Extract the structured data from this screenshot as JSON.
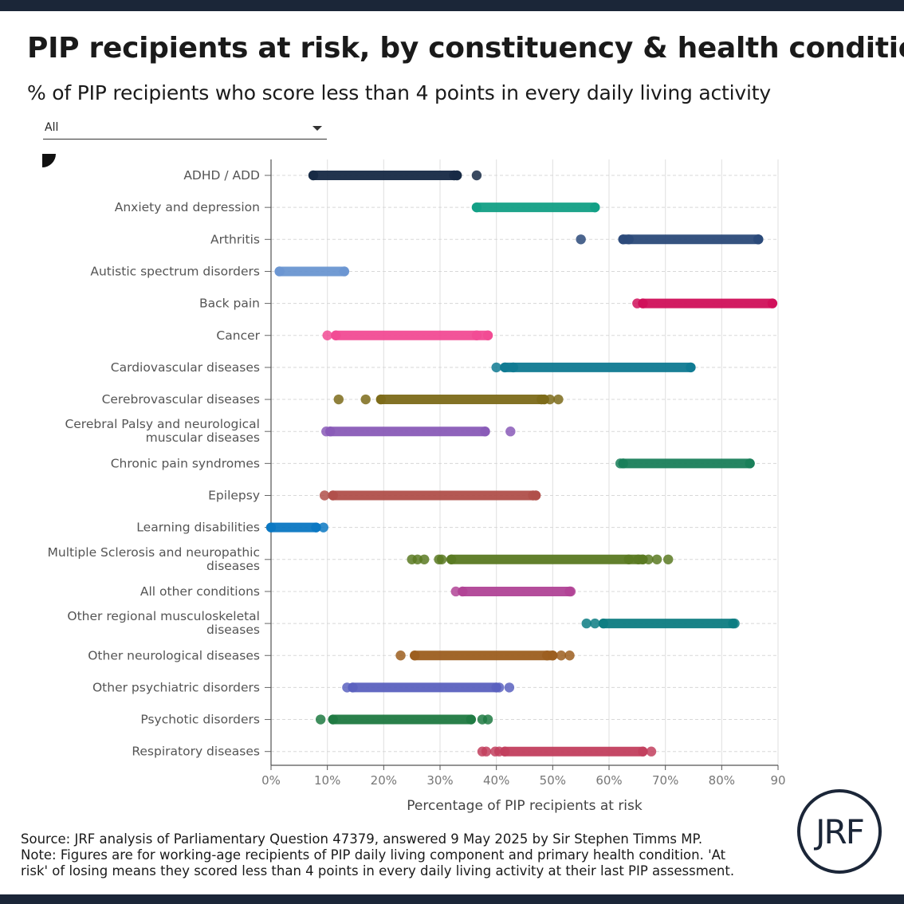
{
  "title": "PIP recipients at risk, by constituency & health condition",
  "subtitle": "% of PIP recipients who score less than 4 points in every daily living activity",
  "filter": {
    "selected": "All"
  },
  "footer": {
    "source": "Source: JRF analysis of Parliamentary Question 47379, answered 9 May 2025 by Sir Stephen Timms MP.",
    "note1": "Note: Figures are for working-age recipients of PIP daily living component and primary health condition. 'At",
    "note2": "risk' of losing means they scored less than 4 points in every daily living activity at their last PIP assessment."
  },
  "logo": {
    "text": "JRF",
    "color": "#1b2638"
  },
  "chart_data": {
    "type": "scatter",
    "xlabel": "Percentage of PIP recipients at risk",
    "xlim": [
      0,
      90
    ],
    "xticks": [
      0,
      10,
      20,
      30,
      40,
      50,
      60,
      70,
      80,
      90
    ],
    "xtick_labels": [
      "0%",
      "10%",
      "20%",
      "30%",
      "40%",
      "50%",
      "60%",
      "70%",
      "80%",
      "90"
    ],
    "grid": true,
    "series": [
      {
        "label": [
          "ADHD / ADD"
        ],
        "color": "#172a45",
        "band": [
          7.5,
          33
        ],
        "points": [
          32.5,
          36.5
        ]
      },
      {
        "label": [
          "Anxiety and depression"
        ],
        "color": "#12a085",
        "band": [
          36.5,
          57.5
        ],
        "points": []
      },
      {
        "label": [
          "Arthritis"
        ],
        "color": "#2c4a7a",
        "band": [
          62.5,
          86.5
        ],
        "points": [
          55,
          63.5,
          86.5
        ]
      },
      {
        "label": [
          "Autistic spectrum disorders"
        ],
        "color": "#6b96d1",
        "band": [
          1.5,
          13
        ],
        "points": []
      },
      {
        "label": [
          "Back pain"
        ],
        "color": "#d0105a",
        "band": [
          66,
          89
        ],
        "points": [
          65
        ]
      },
      {
        "label": [
          "Cancer"
        ],
        "color": "#f24b94",
        "band": [
          11.5,
          38.5
        ],
        "points": [
          10,
          36.5
        ]
      },
      {
        "label": [
          "Cardiovascular diseases"
        ],
        "color": "#0f7a92",
        "band": [
          41.5,
          74.5
        ],
        "points": [
          40,
          43
        ]
      },
      {
        "label": [
          "Cerebrovascular diseases"
        ],
        "color": "#7d6b1a",
        "band": [
          19.5,
          48.5
        ],
        "points": [
          12,
          16.8,
          48,
          49.5,
          51
        ]
      },
      {
        "label": [
          "Cerebral Palsy and neurological",
          "muscular diseases"
        ],
        "color": "#8a5bb8",
        "band": [
          10.5,
          38
        ],
        "points": [
          9.8,
          42.5
        ]
      },
      {
        "label": [
          "Chronic pain syndromes"
        ],
        "color": "#1a7f5a",
        "band": [
          62.5,
          85
        ],
        "points": [
          62
        ]
      },
      {
        "label": [
          "Epilepsy"
        ],
        "color": "#b0504a",
        "band": [
          11,
          47
        ],
        "points": [
          9.5,
          46.5
        ]
      },
      {
        "label": [
          "Learning disabilities"
        ],
        "color": "#0a78c2",
        "band": [
          0,
          8
        ],
        "points": [
          9.3
        ]
      },
      {
        "label": [
          "Multiple Sclerosis and neuropathic",
          "diseases"
        ],
        "color": "#5a7a22",
        "band": [
          32,
          66
        ],
        "points": [
          25,
          26,
          27.2,
          29.8,
          30.3,
          63.5,
          65.2,
          67,
          68.5,
          70.5
        ]
      },
      {
        "label": [
          "All other conditions"
        ],
        "color": "#b14496",
        "band": [
          34,
          53
        ],
        "points": [
          32.8,
          53.2
        ]
      },
      {
        "label": [
          "Other regional musculoskeletal",
          "diseases"
        ],
        "color": "#0d7d82",
        "band": [
          59,
          82
        ],
        "points": [
          56,
          57.5,
          82.3
        ]
      },
      {
        "label": [
          "Other neurological diseases"
        ],
        "color": "#9c5e1f",
        "band": [
          25.5,
          50
        ],
        "points": [
          23,
          49,
          51.5,
          53
        ]
      },
      {
        "label": [
          "Other psychiatric disorders"
        ],
        "color": "#5b62bf",
        "band": [
          14.5,
          40
        ],
        "points": [
          13.5,
          40.5,
          42.3
        ]
      },
      {
        "label": [
          "Psychotic disorders"
        ],
        "color": "#1f7a42",
        "band": [
          11,
          35.5
        ],
        "points": [
          8.8,
          37.5,
          38.5
        ]
      },
      {
        "label": [
          "Respiratory diseases"
        ],
        "color": "#c2405e",
        "band": [
          41.5,
          66
        ],
        "points": [
          37.5,
          38.2,
          39.8,
          40.5,
          67.5
        ]
      }
    ]
  }
}
